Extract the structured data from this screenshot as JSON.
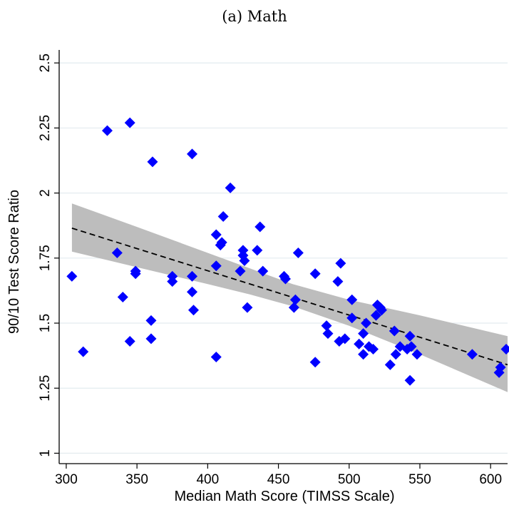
{
  "chart_data": {
    "type": "scatter",
    "title": "(a) Math",
    "xlabel": "Median Math Score (TIMSS Scale)",
    "ylabel": "90/10 Test Score Ratio",
    "xlim": [
      295,
      612
    ],
    "ylim": [
      0.96,
      2.55
    ],
    "xticks": [
      "300",
      "350",
      "400",
      "450",
      "500",
      "550",
      "600"
    ],
    "yticks": [
      "1",
      "1.25",
      "1.5",
      "1.75",
      "2",
      "2.25",
      "2.5"
    ],
    "grid": true,
    "marker_color": "#0000ff",
    "band_color": "#bdbdbd",
    "points": [
      {
        "x": 304,
        "y": 1.68
      },
      {
        "x": 312,
        "y": 1.39
      },
      {
        "x": 329,
        "y": 2.24
      },
      {
        "x": 336,
        "y": 1.77
      },
      {
        "x": 340,
        "y": 1.6
      },
      {
        "x": 345,
        "y": 2.27
      },
      {
        "x": 345,
        "y": 1.43
      },
      {
        "x": 349,
        "y": 1.69
      },
      {
        "x": 349,
        "y": 1.7
      },
      {
        "x": 360,
        "y": 1.51
      },
      {
        "x": 360,
        "y": 1.44
      },
      {
        "x": 361,
        "y": 2.12
      },
      {
        "x": 375,
        "y": 1.68
      },
      {
        "x": 375,
        "y": 1.66
      },
      {
        "x": 389,
        "y": 2.15
      },
      {
        "x": 389,
        "y": 1.68
      },
      {
        "x": 389,
        "y": 1.62
      },
      {
        "x": 390,
        "y": 1.55
      },
      {
        "x": 406,
        "y": 1.72
      },
      {
        "x": 406,
        "y": 1.84
      },
      {
        "x": 406,
        "y": 1.37
      },
      {
        "x": 409,
        "y": 1.8
      },
      {
        "x": 410,
        "y": 1.81
      },
      {
        "x": 411,
        "y": 1.91
      },
      {
        "x": 416,
        "y": 2.02
      },
      {
        "x": 423,
        "y": 1.7
      },
      {
        "x": 425,
        "y": 1.76
      },
      {
        "x": 425,
        "y": 1.78
      },
      {
        "x": 426,
        "y": 1.74
      },
      {
        "x": 428,
        "y": 1.56
      },
      {
        "x": 435,
        "y": 1.78
      },
      {
        "x": 437,
        "y": 1.87
      },
      {
        "x": 439,
        "y": 1.7
      },
      {
        "x": 454,
        "y": 1.68
      },
      {
        "x": 455,
        "y": 1.67
      },
      {
        "x": 461,
        "y": 1.56
      },
      {
        "x": 462,
        "y": 1.59
      },
      {
        "x": 464,
        "y": 1.77
      },
      {
        "x": 476,
        "y": 1.69
      },
      {
        "x": 476,
        "y": 1.35
      },
      {
        "x": 484,
        "y": 1.49
      },
      {
        "x": 485,
        "y": 1.46
      },
      {
        "x": 492,
        "y": 1.66
      },
      {
        "x": 493,
        "y": 1.43
      },
      {
        "x": 494,
        "y": 1.73
      },
      {
        "x": 497,
        "y": 1.44
      },
      {
        "x": 502,
        "y": 1.59
      },
      {
        "x": 502,
        "y": 1.52
      },
      {
        "x": 507,
        "y": 1.42
      },
      {
        "x": 510,
        "y": 1.38
      },
      {
        "x": 510,
        "y": 1.46
      },
      {
        "x": 512,
        "y": 1.5
      },
      {
        "x": 514,
        "y": 1.41
      },
      {
        "x": 517,
        "y": 1.4
      },
      {
        "x": 519,
        "y": 1.53
      },
      {
        "x": 520,
        "y": 1.57
      },
      {
        "x": 522,
        "y": 1.56
      },
      {
        "x": 523,
        "y": 1.55
      },
      {
        "x": 529,
        "y": 1.34
      },
      {
        "x": 532,
        "y": 1.47
      },
      {
        "x": 533,
        "y": 1.38
      },
      {
        "x": 536,
        "y": 1.41
      },
      {
        "x": 541,
        "y": 1.4
      },
      {
        "x": 543,
        "y": 1.28
      },
      {
        "x": 543,
        "y": 1.45
      },
      {
        "x": 544,
        "y": 1.41
      },
      {
        "x": 548,
        "y": 1.38
      },
      {
        "x": 587,
        "y": 1.38
      },
      {
        "x": 606,
        "y": 1.31
      },
      {
        "x": 607,
        "y": 1.33
      },
      {
        "x": 611,
        "y": 1.4
      }
    ],
    "fit_line": {
      "x": [
        304,
        612
      ],
      "y": [
        1.865,
        1.34
      ]
    },
    "confidence_band": {
      "x": [
        304,
        350,
        400,
        430,
        460,
        500,
        550,
        612
      ],
      "upper": [
        1.96,
        1.87,
        1.77,
        1.71,
        1.65,
        1.59,
        1.53,
        1.45
      ],
      "lower": [
        1.775,
        1.715,
        1.65,
        1.61,
        1.565,
        1.49,
        1.38,
        1.235
      ]
    }
  }
}
